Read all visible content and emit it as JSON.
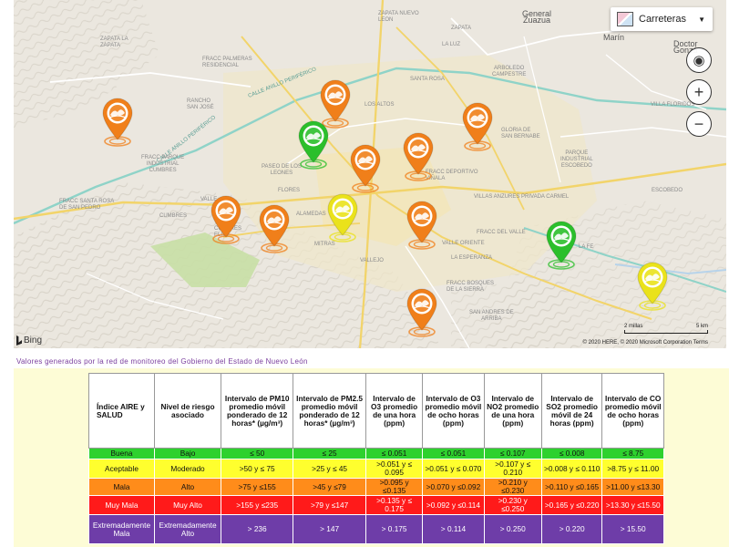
{
  "map": {
    "layer_selector": {
      "label": "Carreteras",
      "icon": "road-map-icon"
    },
    "controls": [
      {
        "name": "locate",
        "glyph": "◉"
      },
      {
        "name": "zoom-in",
        "glyph": "+"
      },
      {
        "name": "zoom-out",
        "glyph": "−"
      }
    ],
    "provider": "Bing",
    "scale": {
      "left": "2 millas",
      "right": "5 km"
    },
    "copyright": "© 2020 HERE, © 2020 Microsoft Corporation Terms",
    "labels": {
      "general_zuazua": "General\nZuazua",
      "marin": "Marín",
      "doctor_gonzalez": "Doctor\nGonzá",
      "zapata": "ZAPATA LA\nZAPATA",
      "zapata2": "ZAPATA",
      "zapata_norte": "ZAPATA NUEVO\nLEON",
      "fracc_palmeras": "FRACC PALMERAS\nRESIDENCIAL",
      "anillo": "Calle Anillo Periférico",
      "anillo2": "Calle Anillo Periférico",
      "santa_rosa": "SANTA ROSA",
      "los_altos": "LOS ALTOS",
      "paseo_leones": "PASEO DE LOS\nLEONES",
      "fracc_parque": "FRACC PARQUE\nINDUSTRIAL\nCUMBRES",
      "deportivo": "FRACC DEPORTIVO\nVIÑALA",
      "villas": "VILLAS ANZURES PRIVADA CARMEL",
      "parque_industrial": "PARQUE\nINDUSTRIAL\nESCOBEDO",
      "la_esperanza": "LA ESPERANZA",
      "valle_oriente": "VALLE ORIENTE",
      "vallejo": "VALLEJO",
      "bosques": "FRACC BOSQUES\nDE LA SIERRA",
      "del_valle": "FRACC DEL VALLE",
      "villa_floridos": "VILLA FLORIDOS",
      "arboledo": "ARBOLEDO\nCAMPESTRE",
      "alamedas": "ALAMEDAS",
      "flores": "FLORES",
      "cumbres": "CUMBRES",
      "san_pedro": "FRACC SANTA ROSA\nDE SAN PEDRO",
      "la_luz": "LA LUZ",
      "gloria": "GLORIA DE\nSAN BERNABE",
      "cumbres_elite": "CUMBRES\nELITE",
      "mitras": "MITRAS",
      "calle": "VALLE",
      "arriba": "SAN ANDRES DE\nARRIBA",
      "la_fe": "LA FE",
      "escobedo": "ESCOBEDO",
      "rancho": "RANCHO\nSAN JOSÉ"
    },
    "stations": [
      {
        "quality": "Mala"
      },
      {
        "quality": "Mala"
      },
      {
        "quality": "Buena"
      },
      {
        "quality": "Mala"
      },
      {
        "quality": "Mala"
      },
      {
        "quality": "Mala"
      },
      {
        "quality": "Mala"
      },
      {
        "quality": "Mala"
      },
      {
        "quality": "Aceptable"
      },
      {
        "quality": "Mala"
      },
      {
        "quality": "Buena"
      },
      {
        "quality": "Mala"
      },
      {
        "quality": "Aceptable"
      }
    ],
    "colors": {
      "Mala": "#f07f1a",
      "Buena": "#2bbf2b",
      "Aceptable": "#eae21b"
    }
  },
  "caption": "Valores generados por la red de monitoreo del Gobierno del Estado de Nuevo León",
  "table": {
    "headers": [
      "Índice AIRE y SALUD",
      "Nivel de riesgo asociado",
      "Intervalo de PM10 promedio móvil ponderado de 12 horas* (µg/m³)",
      "Intervalo de PM2.5 promedio móvil ponderado de 12 horas* (µg/m³)",
      "Intervalo de O3 promedio de una hora (ppm)",
      "Intervalo de O3 promedio móvil de ocho horas (ppm)",
      "Intervalo de NO2 promedio de una hora (ppm)",
      "Intervalo de SO2 promedio móvil de 24 horas (ppm)",
      "Intervalo de CO promedio móvil de ocho horas (ppm)"
    ],
    "rows": [
      {
        "cls": "buena",
        "cells": [
          "Buena",
          "Bajo",
          "≤ 50",
          "≤ 25",
          "≤ 0.051",
          "≤ 0.051",
          "≤ 0.107",
          "≤ 0.008",
          "≤ 8.75"
        ]
      },
      {
        "cls": "aceptable",
        "cells": [
          "Aceptable",
          "Moderado",
          ">50 y ≤ 75",
          ">25 y ≤ 45",
          ">0.051 y ≤ 0.095",
          ">0.051 y ≤ 0.070",
          ">0.107 y ≤ 0.210",
          ">0.008 y ≤ 0.110",
          ">8.75 y ≤ 11.00"
        ]
      },
      {
        "cls": "mala",
        "cells": [
          "Mala",
          "Alto",
          ">75 y ≤155",
          ">45 y ≤79",
          ">0.095 y ≤0.135",
          ">0.070 y ≤0.092",
          ">0.210 y ≤0.230",
          ">0.110 y ≤0.165",
          ">11.00 y ≤13.30"
        ]
      },
      {
        "cls": "muymala",
        "cells": [
          "Muy Mala",
          "Muy Alto",
          ">155 y ≤235",
          ">79 y ≤147",
          ">0.135 y ≤ 0.175",
          ">0.092 y ≤0.114",
          ">0.230 y ≤0.250",
          ">0.165 y ≤0.220",
          ">13.30 y ≤15.50"
        ]
      },
      {
        "cls": "extrema",
        "cells": [
          "Extremadamente Mala",
          "Extremadamente Alto",
          "> 236",
          "> 147",
          "> 0.175",
          "> 0.114",
          "> 0.250",
          "> 0.220",
          "> 15.50"
        ]
      }
    ]
  }
}
